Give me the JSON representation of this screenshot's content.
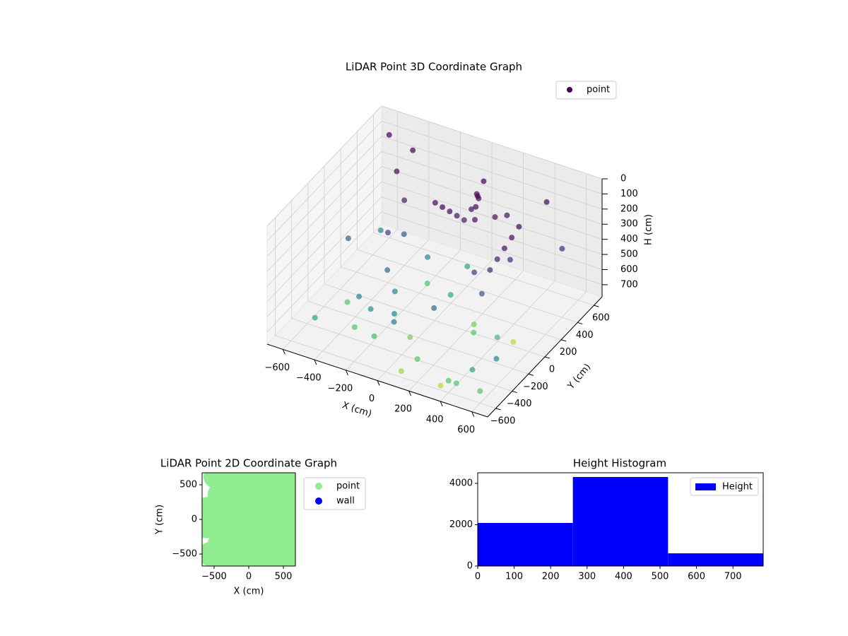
{
  "chart_data": [
    {
      "type": "scatter3d",
      "title": "LiDAR Point 3D Coordinate Graph",
      "xlabel": "X (cm)",
      "ylabel": "Y (cm)",
      "zlabel": "H (cm)",
      "colormap": "viridis",
      "zinverted": true,
      "series": [
        {
          "name": "point",
          "color": "#440154",
          "x": [
            -500,
            -300,
            -100,
            100,
            300,
            500,
            -600,
            -400,
            -200,
            0,
            200,
            400,
            600,
            -550,
            -350,
            -150,
            50,
            250,
            450,
            -450,
            -250,
            -50,
            150,
            350,
            550,
            -100,
            -80,
            -60,
            -40,
            -20,
            0,
            20,
            40,
            60,
            80,
            100,
            300,
            320,
            340,
            360,
            380,
            -600,
            -500,
            -400,
            600,
            500,
            400,
            -300,
            300,
            0,
            -200,
            200,
            -450,
            450,
            -150,
            150,
            -350,
            350,
            0,
            100
          ],
          "y": [
            -500,
            -400,
            -300,
            -200,
            -100,
            0,
            100,
            200,
            300,
            400,
            500,
            600,
            -600,
            400,
            300,
            200,
            100,
            0,
            -100,
            -200,
            -300,
            -400,
            -500,
            -600,
            500,
            200,
            250,
            300,
            350,
            400,
            450,
            500,
            450,
            400,
            350,
            300,
            100,
            150,
            200,
            250,
            300,
            600,
            500,
            400,
            -400,
            -500,
            -600,
            0,
            0,
            -300,
            -100,
            100,
            600,
            -600,
            -450,
            450,
            -250,
            250,
            600,
            -600
          ],
          "values": [
            650,
            700,
            600,
            550,
            700,
            750,
            500,
            450,
            600,
            650,
            300,
            200,
            700,
            600,
            500,
            700,
            650,
            720,
            680,
            700,
            620,
            580,
            700,
            750,
            400,
            150,
            200,
            250,
            300,
            350,
            300,
            250,
            200,
            150,
            200,
            250,
            400,
            350,
            300,
            250,
            200,
            100,
            250,
            350,
            600,
            650,
            700,
            550,
            500,
            720,
            600,
            450,
            150,
            700,
            680,
            300,
            600,
            400,
            200,
            740
          ]
        }
      ],
      "xlim": [
        -700,
        700
      ],
      "ylim": [
        -700,
        700
      ],
      "zlim": [
        0,
        780
      ],
      "xticks": [
        {
          "value": -600,
          "label": "−600"
        },
        {
          "value": -400,
          "label": "−400"
        },
        {
          "value": -200,
          "label": "−200"
        },
        0,
        200,
        400,
        600
      ],
      "yticks": [
        {
          "value": -600,
          "label": "−600"
        },
        {
          "value": -400,
          "label": "−400"
        },
        {
          "value": -200,
          "label": "−200"
        },
        0,
        200,
        400,
        600
      ],
      "zticks": [
        0,
        100,
        200,
        300,
        400,
        500,
        600,
        700
      ]
    },
    {
      "type": "scatter",
      "title": "LiDAR Point 2D Coordinate Graph",
      "xlabel": "X (cm)",
      "ylabel": "Y (cm)",
      "series": [
        {
          "name": "point",
          "color": "#90ee90",
          "x": [
            -420,
            -210,
            0,
            210,
            420,
            630,
            -420,
            -210,
            0,
            210,
            420,
            630,
            -420,
            -210,
            0,
            210,
            420,
            630,
            -420,
            -210,
            0,
            210,
            420,
            630,
            -420,
            -210,
            0,
            210,
            420,
            630,
            -420,
            -210,
            0,
            210,
            420,
            630,
            -600,
            -560,
            -600,
            -480
          ],
          "y": [
            -600,
            -600,
            -600,
            -600,
            -600,
            -600,
            -360,
            -360,
            -360,
            -360,
            -360,
            -360,
            -120,
            -120,
            -120,
            -120,
            -120,
            -120,
            120,
            120,
            120,
            120,
            120,
            120,
            360,
            360,
            360,
            360,
            360,
            360,
            600,
            600,
            600,
            600,
            600,
            600,
            -100,
            -500,
            150,
            620
          ]
        },
        {
          "name": "wall",
          "color": "#0000ff",
          "x": [],
          "y": []
        }
      ],
      "xlim": [
        -673,
        673
      ],
      "ylim": [
        -673,
        673
      ],
      "xticks": [
        {
          "value": -500,
          "label": "−500"
        },
        0,
        500
      ],
      "yticks": [
        {
          "value": -500,
          "label": "−500"
        },
        0,
        500
      ]
    },
    {
      "type": "histogram",
      "title": "Height Histogram",
      "name": "Height",
      "color": "#0000ff",
      "bins": [
        0,
        261,
        522,
        783
      ],
      "counts": [
        2085,
        4308,
        615
      ],
      "xlim": [
        0,
        783
      ],
      "ylim": [
        0,
        4513
      ],
      "xticks": [
        0,
        100,
        200,
        300,
        400,
        500,
        600,
        700
      ],
      "yticks": [
        0,
        2000,
        4000
      ]
    }
  ]
}
